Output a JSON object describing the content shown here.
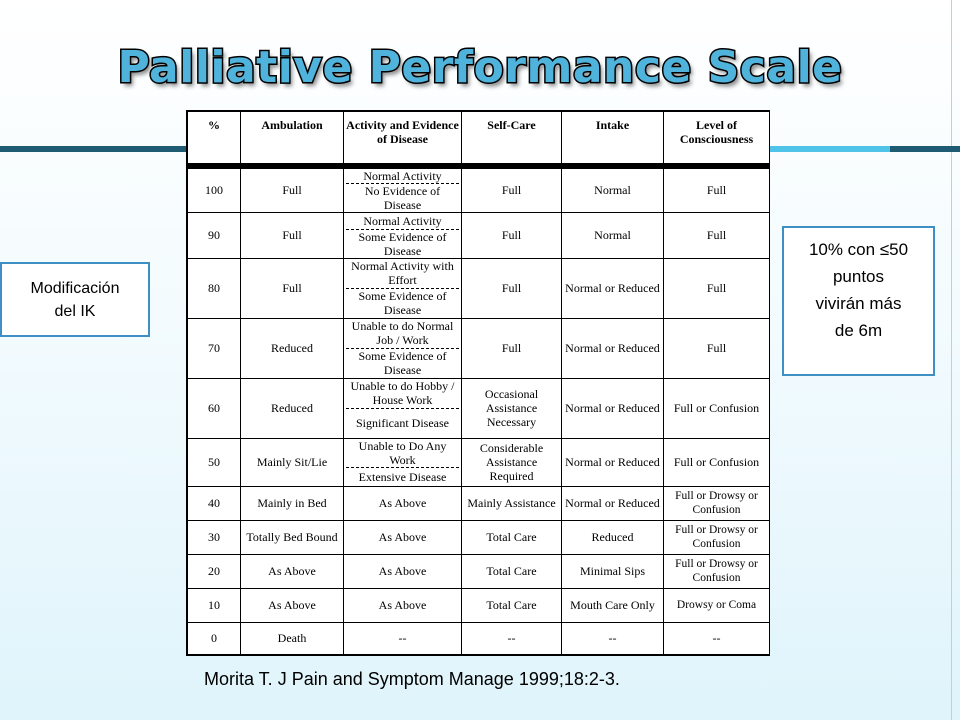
{
  "title": "Palliative Performance Scale",
  "left_box": {
    "line1": "Modificación",
    "line2": "del IK"
  },
  "right_box": {
    "line1": "10% con ≤50",
    "line2": "puntos",
    "line3": "vivirán más",
    "line4": "de 6m"
  },
  "citation": "Morita T. J Pain and Symptom Manage 1999;18:2-3.",
  "table": {
    "headers": [
      "%",
      "Ambulation",
      "Activity and Evidence of Disease",
      "Self-Care",
      "Intake",
      "Level of Consciousness"
    ],
    "rows": [
      {
        "pct": "100",
        "amb": "Full",
        "act": [
          "Normal Activity",
          "No Evidence of Disease"
        ],
        "self": "Full",
        "intake": "Normal",
        "loc": "Full"
      },
      {
        "pct": "90",
        "amb": "Full",
        "act": [
          "Normal Activity",
          "Some Evidence of Disease"
        ],
        "self": "Full",
        "intake": "Normal",
        "loc": "Full"
      },
      {
        "pct": "80",
        "amb": "Full",
        "act": [
          "Normal Activity with Effort",
          "Some Evidence of Disease"
        ],
        "self": "Full",
        "intake": "Normal or Reduced",
        "loc": "Full"
      },
      {
        "pct": "70",
        "amb": "Reduced",
        "act": [
          "Unable to do Normal Job / Work",
          "Some Evidence of Disease"
        ],
        "self": "Full",
        "intake": "Normal or Reduced",
        "loc": "Full"
      },
      {
        "pct": "60",
        "amb": "Reduced",
        "act": [
          "Unable to do Hobby / House Work",
          "Significant Disease"
        ],
        "self": "Occasional Assistance Necessary",
        "intake": "Normal or Reduced",
        "loc": "Full or Confusion"
      },
      {
        "pct": "50",
        "amb": "Mainly Sit/Lie",
        "act": [
          "Unable to Do Any Work",
          "Extensive Disease"
        ],
        "self": "Considerable Assistance Required",
        "intake": "Normal or Reduced",
        "loc": "Full or Confusion"
      },
      {
        "pct": "40",
        "amb": "Mainly in Bed",
        "act": [
          "As Above"
        ],
        "self": "Mainly Assistance",
        "intake": "Normal or Reduced",
        "loc": "Full or Drowsy or Confusion"
      },
      {
        "pct": "30",
        "amb": "Totally Bed Bound",
        "act": [
          "As Above"
        ],
        "self": "Total Care",
        "intake": "Reduced",
        "loc": "Full or Drowsy or Confusion"
      },
      {
        "pct": "20",
        "amb": "As Above",
        "act": [
          "As Above"
        ],
        "self": "Total Care",
        "intake": "Minimal Sips",
        "loc": "Full or Drowsy or Confusion"
      },
      {
        "pct": "10",
        "amb": "As Above",
        "act": [
          "As Above"
        ],
        "self": "Total Care",
        "intake": "Mouth Care Only",
        "loc": "Drowsy or Coma"
      },
      {
        "pct": "0",
        "amb": "Death",
        "act": [
          "--"
        ],
        "self": "--",
        "intake": "--",
        "loc": "--"
      }
    ]
  }
}
